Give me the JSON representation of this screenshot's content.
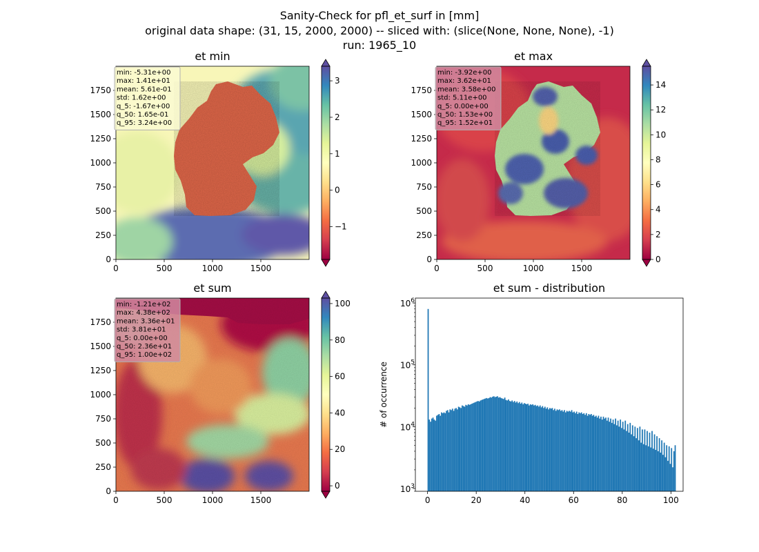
{
  "figure": {
    "title_lines": [
      "Sanity-Check for pfl_et_surf in [mm]",
      "original data shape: (31, 15, 2000, 2000) -- sliced with: (slice(None, None, None), -1)",
      "run: 1965_10"
    ]
  },
  "chart_data": [
    {
      "type": "heatmap",
      "title": "et min",
      "xlim": [
        0,
        2000
      ],
      "ylim": [
        0,
        2000
      ],
      "xticks": [
        0,
        500,
        1000,
        1500
      ],
      "yticks": [
        0,
        250,
        500,
        750,
        1000,
        1250,
        1500,
        1750
      ],
      "colormap": "Spectral",
      "colorbar": {
        "range": [
          -1.9,
          3.4
        ],
        "ticks": [
          -1,
          0,
          1,
          2,
          3
        ],
        "tick_labels": [
          "−1",
          "0",
          "1",
          "2",
          "3"
        ],
        "extend": "both"
      },
      "grid": false,
      "stats": [
        "min: -5.31e+00",
        "max: 1.41e+01",
        "mean: 5.61e-01",
        "std: 1.62e+00",
        "q_5: -1.67e+00",
        "q_50: 1.65e-01",
        "q_95: 3.24e+00"
      ],
      "stats_box_color": "#fafad2"
    },
    {
      "type": "heatmap",
      "title": "et max",
      "xlim": [
        0,
        2000
      ],
      "ylim": [
        0,
        2000
      ],
      "xticks": [
        0,
        500,
        1000,
        1500
      ],
      "yticks": [
        0,
        250,
        500,
        750,
        1000,
        1250,
        1500,
        1750
      ],
      "colormap": "Spectral",
      "colorbar": {
        "range": [
          0,
          15.5
        ],
        "ticks": [
          0,
          2,
          4,
          6,
          8,
          10,
          12,
          14
        ],
        "tick_labels": [
          "0",
          "2",
          "4",
          "6",
          "8",
          "10",
          "12",
          "14"
        ],
        "extend": "both"
      },
      "grid": false,
      "stats": [
        "min: -3.92e+00",
        "max: 3.62e+01",
        "mean: 3.58e+00",
        "std: 5.11e+00",
        "q_5: 0.00e+00",
        "q_50: 1.53e+00",
        "q_95: 1.52e+01"
      ],
      "stats_box_color": "#d08aa0"
    },
    {
      "type": "heatmap",
      "title": "et sum",
      "xlim": [
        0,
        2000
      ],
      "ylim": [
        0,
        2000
      ],
      "xticks": [
        0,
        500,
        1000,
        1500
      ],
      "yticks": [
        0,
        250,
        500,
        750,
        1000,
        1250,
        1500,
        1750
      ],
      "colormap": "Spectral",
      "colorbar": {
        "range": [
          -3,
          103
        ],
        "ticks": [
          0,
          20,
          40,
          60,
          80,
          100
        ],
        "tick_labels": [
          "0",
          "20",
          "40",
          "60",
          "80",
          "100"
        ],
        "extend": "both"
      },
      "grid": false,
      "stats": [
        "min: -1.21e+02",
        "max: 4.38e+02",
        "mean: 3.36e+01",
        "std: 3.81e+01",
        "q_5: 0.00e+00",
        "q_50: 2.36e+01",
        "q_95: 1.00e+02"
      ],
      "stats_box_color": "#d08aa0"
    },
    {
      "type": "bar",
      "title": "et sum - distribution",
      "ylabel": "# of occurrence",
      "xlabel": "",
      "yscale": "log",
      "xlim": [
        -5,
        105
      ],
      "ylim": [
        900,
        1200000
      ],
      "xticks": [
        0,
        20,
        40,
        60,
        80,
        100
      ],
      "yticks": [
        1000,
        10000,
        100000,
        1000000
      ],
      "ytick_labels": [
        {
          "base": "10",
          "exp": "3"
        },
        {
          "base": "10",
          "exp": "4"
        },
        {
          "base": "10",
          "exp": "5"
        },
        {
          "base": "10",
          "exp": "6"
        }
      ],
      "bar_color": "#1f77b4",
      "bin_width": 0.5,
      "bin_start": 0,
      "counts": [
        800000,
        13000,
        12000,
        13500,
        14000,
        13000,
        12500,
        15000,
        15500,
        16000,
        15000,
        17000,
        16500,
        17000,
        16500,
        18000,
        18500,
        17000,
        19000,
        18500,
        19500,
        18000,
        19500,
        20000,
        19000,
        21000,
        20500,
        20000,
        22000,
        21500,
        21000,
        22500,
        22000,
        23000,
        22500,
        23000,
        23500,
        24000,
        24500,
        25000,
        25500,
        26000,
        25500,
        26500,
        27000,
        27500,
        28000,
        28500,
        29000,
        28500,
        29000,
        30000,
        29500,
        30500,
        31000,
        30000,
        30500,
        31000,
        29500,
        30000,
        29000,
        28500,
        28000,
        29500,
        27000,
        26500,
        27500,
        26000,
        25500,
        26500,
        25000,
        26000,
        24500,
        25500,
        24000,
        25000,
        23500,
        24500,
        23000,
        24000,
        23500,
        23000,
        23500,
        22000,
        23000,
        22500,
        23000,
        22000,
        22500,
        21500,
        22000,
        21000,
        22000,
        20500,
        21500,
        20000,
        21000,
        19500,
        20500,
        19000,
        20000,
        19500,
        20000,
        18500,
        19500,
        18000,
        19000,
        18500,
        19000,
        18000,
        18500,
        17500,
        18500,
        17000,
        18000,
        17500,
        18000,
        17500,
        18500,
        17000,
        17500,
        16500,
        17500,
        16000,
        17000,
        16500,
        17000,
        16000,
        16500,
        15500,
        16500,
        15000,
        16000,
        15500,
        16000,
        15000,
        15500,
        14500,
        15000,
        14000,
        15000,
        13500,
        14500,
        13000,
        14500,
        13500,
        14000,
        12500,
        14000,
        12000,
        13500,
        11500,
        13000,
        11000,
        13500,
        10500,
        12500,
        10000,
        13000,
        9500,
        12000,
        9000,
        12500,
        8500,
        11000,
        8000,
        11500,
        7500,
        10500,
        7000,
        10000,
        6500,
        9500,
        6000,
        10000,
        5500,
        9000,
        5200,
        9000,
        5000,
        8500,
        4800,
        8000,
        4600,
        8500,
        4400,
        7500,
        4200,
        7000,
        4000,
        6500,
        3800,
        6000,
        3500,
        5500,
        3200,
        5000,
        2800,
        4800,
        2500,
        4500,
        2200,
        4000,
        5000
      ]
    }
  ]
}
